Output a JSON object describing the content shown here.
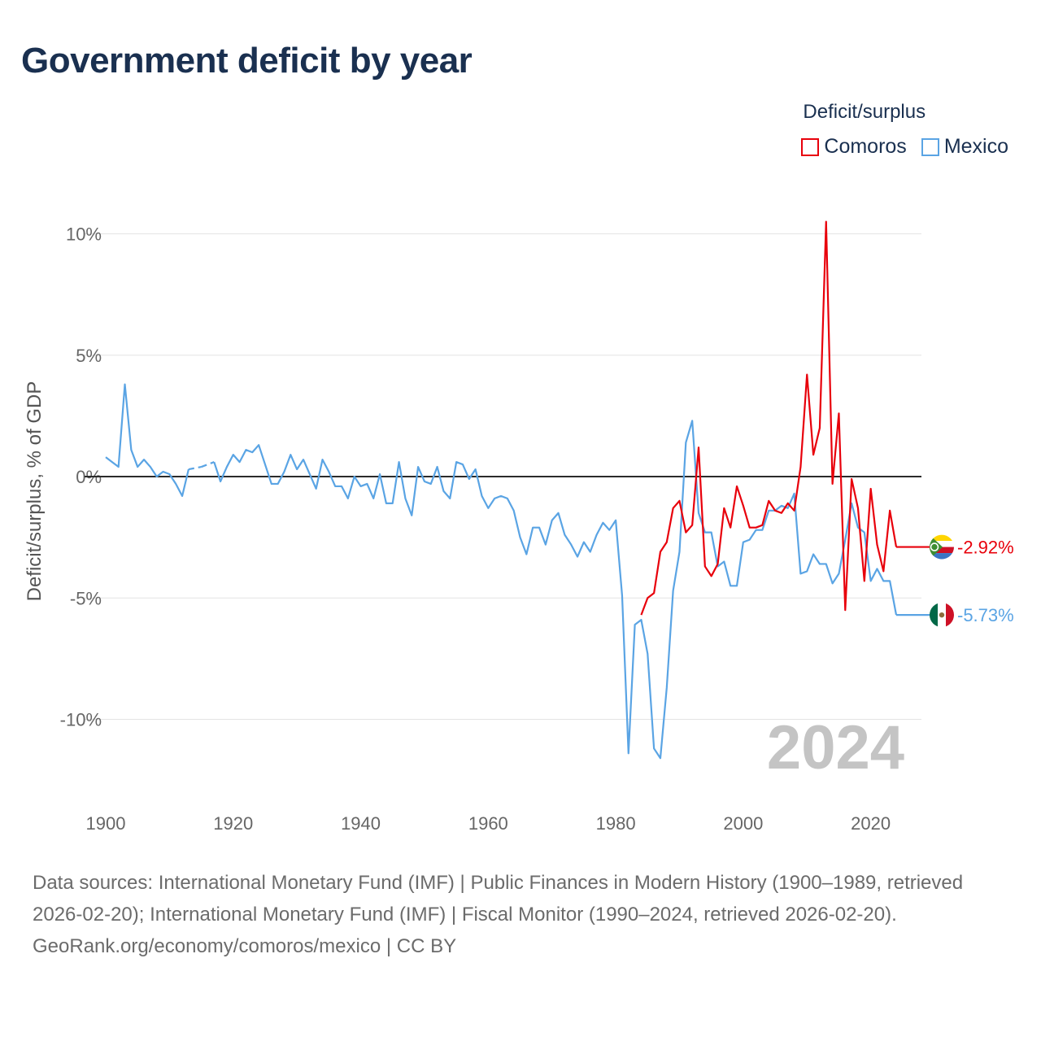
{
  "title": "Government deficit by year",
  "legend": {
    "title": "Deficit/surplus",
    "items": [
      {
        "name": "Comoros",
        "color": "#e8000b"
      },
      {
        "name": "Mexico",
        "color": "#5aa4e4"
      }
    ]
  },
  "footer": {
    "sources": "Data sources: International Monetary Fund (IMF) | Public Finances in Modern History (1900–1989, retrieved 2026-02-20); International Monetary Fund (IMF) | Fiscal Monitor (1990–2024, retrieved 2026-02-20).",
    "credit": "GeoRank.org/economy/comoros/mexico | CC BY"
  },
  "chart_data": {
    "type": "line",
    "title": "Government deficit by year",
    "xlabel": "",
    "ylabel": "Deficit/surplus, % of GDP",
    "xlim": [
      1900,
      2024
    ],
    "ylim": [
      -13,
      11
    ],
    "x_ticks": [
      1900,
      1920,
      1940,
      1960,
      1980,
      2000,
      2020
    ],
    "y_ticks": [
      {
        "value": 10,
        "label": "10%"
      },
      {
        "value": 5,
        "label": "5%"
      },
      {
        "value": 0,
        "label": "0%"
      },
      {
        "value": -5,
        "label": "-5%"
      },
      {
        "value": -10,
        "label": "-10%"
      }
    ],
    "year_label": "2024",
    "series": [
      {
        "name": "Mexico",
        "color": "#5aa4e4",
        "end_label": "-5.73%",
        "points": [
          [
            1900,
            0.8
          ],
          [
            1901,
            0.6
          ],
          [
            1902,
            0.4
          ],
          [
            1903,
            3.8
          ],
          [
            1904,
            1.1
          ],
          [
            1905,
            0.4
          ],
          [
            1906,
            0.7
          ],
          [
            1907,
            0.4
          ],
          [
            1908,
            0.0
          ],
          [
            1909,
            0.2
          ],
          [
            1910,
            0.1
          ],
          [
            1911,
            -0.3
          ],
          [
            1912,
            -0.8
          ],
          [
            1913,
            0.3
          ],
          [
            1914,
            null
          ],
          [
            1915,
            0.4
          ],
          [
            1916,
            null
          ],
          [
            1917,
            0.6
          ],
          [
            1918,
            -0.2
          ],
          [
            1919,
            0.4
          ],
          [
            1920,
            0.9
          ],
          [
            1921,
            0.6
          ],
          [
            1922,
            1.1
          ],
          [
            1923,
            1.0
          ],
          [
            1924,
            1.3
          ],
          [
            1925,
            0.5
          ],
          [
            1926,
            -0.3
          ],
          [
            1927,
            -0.3
          ],
          [
            1928,
            0.2
          ],
          [
            1929,
            0.9
          ],
          [
            1930,
            0.3
          ],
          [
            1931,
            0.7
          ],
          [
            1932,
            0.1
          ],
          [
            1933,
            -0.5
          ],
          [
            1934,
            0.7
          ],
          [
            1935,
            0.2
          ],
          [
            1936,
            -0.4
          ],
          [
            1937,
            -0.4
          ],
          [
            1938,
            -0.9
          ],
          [
            1939,
            0.0
          ],
          [
            1940,
            -0.4
          ],
          [
            1941,
            -0.3
          ],
          [
            1942,
            -0.9
          ],
          [
            1943,
            0.1
          ],
          [
            1944,
            -1.1
          ],
          [
            1945,
            -1.1
          ],
          [
            1946,
            0.6
          ],
          [
            1947,
            -0.9
          ],
          [
            1948,
            -1.6
          ],
          [
            1949,
            0.4
          ],
          [
            1950,
            -0.2
          ],
          [
            1951,
            -0.3
          ],
          [
            1952,
            0.4
          ],
          [
            1953,
            -0.6
          ],
          [
            1954,
            -0.9
          ],
          [
            1955,
            0.6
          ],
          [
            1956,
            0.5
          ],
          [
            1957,
            -0.1
          ],
          [
            1958,
            0.3
          ],
          [
            1959,
            -0.8
          ],
          [
            1960,
            -1.3
          ],
          [
            1961,
            -0.9
          ],
          [
            1962,
            -0.8
          ],
          [
            1963,
            -0.9
          ],
          [
            1964,
            -1.4
          ],
          [
            1965,
            -2.5
          ],
          [
            1966,
            -3.2
          ],
          [
            1967,
            -2.1
          ],
          [
            1968,
            -2.1
          ],
          [
            1969,
            -2.8
          ],
          [
            1970,
            -1.8
          ],
          [
            1971,
            -1.5
          ],
          [
            1972,
            -2.4
          ],
          [
            1973,
            -2.8
          ],
          [
            1974,
            -3.3
          ],
          [
            1975,
            -2.7
          ],
          [
            1976,
            -3.1
          ],
          [
            1977,
            -2.4
          ],
          [
            1978,
            -1.9
          ],
          [
            1979,
            -2.2
          ],
          [
            1980,
            -1.8
          ],
          [
            1981,
            -4.9
          ],
          [
            1982,
            -11.4
          ],
          [
            1983,
            -6.1
          ],
          [
            1984,
            -5.9
          ],
          [
            1985,
            -7.3
          ],
          [
            1986,
            -11.2
          ],
          [
            1987,
            -11.6
          ],
          [
            1988,
            -8.7
          ],
          [
            1989,
            -4.7
          ],
          [
            1990,
            -3.1
          ],
          [
            1991,
            1.4
          ],
          [
            1992,
            2.3
          ],
          [
            1993,
            -1.5
          ],
          [
            1994,
            -2.3
          ],
          [
            1995,
            -2.3
          ],
          [
            1996,
            -3.7
          ],
          [
            1997,
            -3.5
          ],
          [
            1998,
            -4.5
          ],
          [
            1999,
            -4.5
          ],
          [
            2000,
            -2.7
          ],
          [
            2001,
            -2.6
          ],
          [
            2002,
            -2.2
          ],
          [
            2003,
            -2.2
          ],
          [
            2004,
            -1.4
          ],
          [
            2005,
            -1.4
          ],
          [
            2006,
            -1.2
          ],
          [
            2007,
            -1.3
          ],
          [
            2008,
            -0.7
          ],
          [
            2009,
            -4.0
          ],
          [
            2010,
            -3.9
          ],
          [
            2011,
            -3.2
          ],
          [
            2012,
            -3.6
          ],
          [
            2013,
            -3.6
          ],
          [
            2014,
            -4.4
          ],
          [
            2015,
            -4.0
          ],
          [
            2016,
            -2.6
          ],
          [
            2017,
            -1.1
          ],
          [
            2018,
            -2.1
          ],
          [
            2019,
            -2.3
          ],
          [
            2020,
            -4.3
          ],
          [
            2021,
            -3.8
          ],
          [
            2022,
            -4.3
          ],
          [
            2023,
            -4.3
          ],
          [
            2024,
            -5.7
          ]
        ]
      },
      {
        "name": "Comoros",
        "color": "#e8000b",
        "end_label": "-2.92%",
        "points": [
          [
            1984,
            -5.7
          ],
          [
            1985,
            -5.0
          ],
          [
            1986,
            -4.8
          ],
          [
            1987,
            -3.1
          ],
          [
            1988,
            -2.7
          ],
          [
            1989,
            -1.3
          ],
          [
            1990,
            -1.0
          ],
          [
            1991,
            -2.3
          ],
          [
            1992,
            -2.0
          ],
          [
            1993,
            1.2
          ],
          [
            1994,
            -3.7
          ],
          [
            1995,
            -4.1
          ],
          [
            1996,
            -3.6
          ],
          [
            1997,
            -1.3
          ],
          [
            1998,
            -2.1
          ],
          [
            1999,
            -0.4
          ],
          [
            2000,
            -1.2
          ],
          [
            2001,
            -2.1
          ],
          [
            2002,
            -2.1
          ],
          [
            2003,
            -2.0
          ],
          [
            2004,
            -1.0
          ],
          [
            2005,
            -1.4
          ],
          [
            2006,
            -1.5
          ],
          [
            2007,
            -1.1
          ],
          [
            2008,
            -1.4
          ],
          [
            2009,
            0.4
          ],
          [
            2010,
            4.2
          ],
          [
            2011,
            0.9
          ],
          [
            2012,
            2.0
          ],
          [
            2013,
            10.5
          ],
          [
            2014,
            -0.3
          ],
          [
            2015,
            2.6
          ],
          [
            2016,
            -5.5
          ],
          [
            2017,
            -0.1
          ],
          [
            2018,
            -1.3
          ],
          [
            2019,
            -4.3
          ],
          [
            2020,
            -0.5
          ],
          [
            2021,
            -2.8
          ],
          [
            2022,
            -3.9
          ],
          [
            2023,
            -1.4
          ],
          [
            2024,
            -2.9
          ]
        ]
      }
    ]
  }
}
